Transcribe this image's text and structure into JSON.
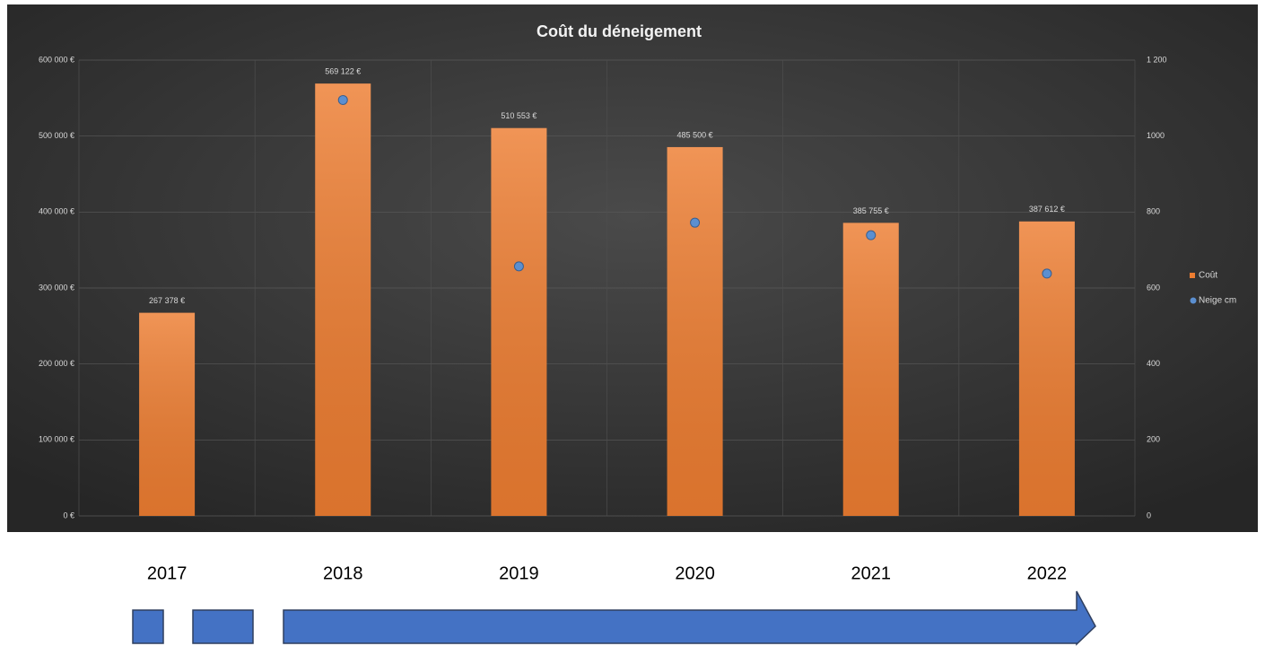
{
  "chart_data": {
    "type": "bar",
    "title": "Coût du déneigement",
    "categories": [
      "2017",
      "2018",
      "2019",
      "2020",
      "2021",
      "2022"
    ],
    "series": [
      {
        "name": "Coût",
        "type": "bar",
        "color": "#ed7d31",
        "values": [
          267378,
          569122,
          510553,
          485500,
          385755,
          387612
        ],
        "value_labels": [
          "267 378 €",
          "569 122 €",
          "510 553 €",
          "485 500 €",
          "385 755 €",
          "387 612 €"
        ]
      },
      {
        "name": "Neige cm",
        "type": "scatter",
        "axis": "y2",
        "color": "#5b8fd0",
        "values": [
          null,
          1095,
          657,
          772,
          739,
          638
        ]
      }
    ],
    "ylim": [
      0,
      600000
    ],
    "yticks": [
      {
        "value": 0,
        "label": "0 €"
      },
      {
        "value": 100000,
        "label": "100 000 €"
      },
      {
        "value": 200000,
        "label": "200 000 €"
      },
      {
        "value": 300000,
        "label": "300 000 €"
      },
      {
        "value": 400000,
        "label": "400 000 €"
      },
      {
        "value": 500000,
        "label": "500 000 €"
      },
      {
        "value": 600000,
        "label": "600 000 €"
      }
    ],
    "y2lim": [
      0,
      1200
    ],
    "y2ticks": [
      0,
      200,
      400,
      600,
      800,
      1000,
      {
        "value": 1200,
        "label": "1 200"
      }
    ],
    "grid": true,
    "legend": "right"
  }
}
